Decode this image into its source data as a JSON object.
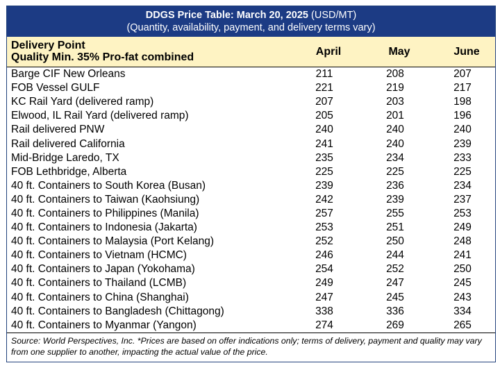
{
  "title": {
    "bold": "DDGS Price Table: March 20, 2025",
    "unit": "(USD/MT)",
    "subtitle": "(Quantity, availability, payment, and delivery terms vary)"
  },
  "header": {
    "point_line1": "Delivery Point",
    "point_line2": "Quality Min. 35% Pro-fat combined",
    "col_april": "April",
    "col_may": "May",
    "col_june": "June"
  },
  "rows": [
    {
      "point": "Barge CIF New Orleans",
      "april": "211",
      "may": "208",
      "june": "207"
    },
    {
      "point": "FOB Vessel GULF",
      "april": "221",
      "may": "219",
      "june": "217"
    },
    {
      "point": "KC Rail Yard (delivered ramp)",
      "april": "207",
      "may": "203",
      "june": "198"
    },
    {
      "point": "Elwood, IL Rail Yard (delivered ramp)",
      "april": "205",
      "may": "201",
      "june": "196"
    },
    {
      "point": "Rail delivered PNW",
      "april": "240",
      "may": "240",
      "june": "240"
    },
    {
      "point": "Rail delivered California",
      "april": "241",
      "may": "240",
      "june": "239"
    },
    {
      "point": "Mid-Bridge Laredo, TX",
      "april": "235",
      "may": "234",
      "june": "233"
    },
    {
      "point": "FOB Lethbridge, Alberta",
      "april": "225",
      "may": "225",
      "june": "225"
    },
    {
      "point": "40 ft. Containers to South Korea (Busan)",
      "april": "239",
      "may": "236",
      "june": "234"
    },
    {
      "point": "40 ft. Containers to Taiwan (Kaohsiung)",
      "april": "242",
      "may": "239",
      "june": "237"
    },
    {
      "point": "40 ft. Containers to Philippines (Manila)",
      "april": "257",
      "may": "255",
      "june": "253"
    },
    {
      "point": "40 ft. Containers to Indonesia (Jakarta)",
      "april": "253",
      "may": "251",
      "june": "249"
    },
    {
      "point": "40 ft. Containers to Malaysia (Port Kelang)",
      "april": "252",
      "may": "250",
      "june": "248"
    },
    {
      "point": "40 ft. Containers to Vietnam (HCMC)",
      "april": "246",
      "may": "244",
      "june": "241"
    },
    {
      "point": "40 ft. Containers to Japan (Yokohama)",
      "april": "254",
      "may": "252",
      "june": "250"
    },
    {
      "point": "40 ft. Containers to Thailand (LCMB)",
      "april": "249",
      "may": "247",
      "june": "245"
    },
    {
      "point": "40 ft. Containers to China (Shanghai)",
      "april": "247",
      "may": "245",
      "june": "243"
    },
    {
      "point": "40 ft. Containers to Bangladesh (Chittagong)",
      "april": "338",
      "may": "336",
      "june": "334"
    },
    {
      "point": "40 ft. Containers to Myanmar (Yangon)",
      "april": "274",
      "may": "269",
      "june": "265"
    }
  ],
  "source": "Source: World Perspectives, Inc. *Prices are based on offer indications only; terms of delivery, payment and quality may vary from one supplier to another, impacting the actual value of the price.",
  "colors": {
    "title_bg": "#1c3b84",
    "header_bg": "#fef3c3"
  }
}
